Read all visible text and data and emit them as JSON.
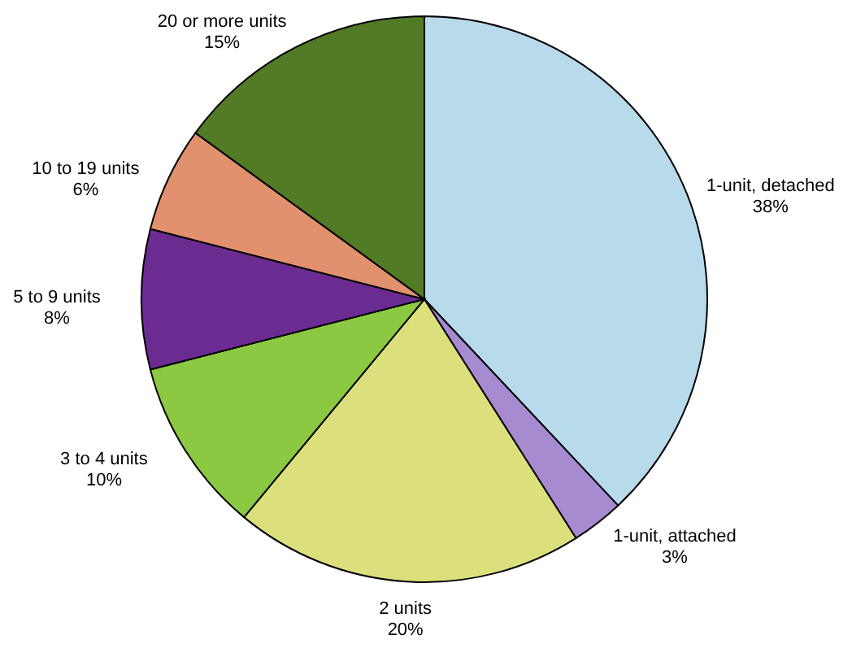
{
  "chart_data": {
    "type": "pie",
    "categories": [
      "1-unit, detached",
      "1-unit, attached",
      "2 units",
      "3 to 4 units",
      "5 to 9 units",
      "10 to 19 units",
      "20 or more units"
    ],
    "values": [
      38,
      3,
      20,
      10,
      8,
      6,
      15
    ],
    "value_labels": [
      "38%",
      "3%",
      "20%",
      "10%",
      "8%",
      "6%",
      "15%"
    ],
    "colors": [
      "#b8dbeb",
      "#a68bd1",
      "#dbe07c",
      "#8cc943",
      "#6b2c92",
      "#e2916f",
      "#527b25"
    ]
  }
}
